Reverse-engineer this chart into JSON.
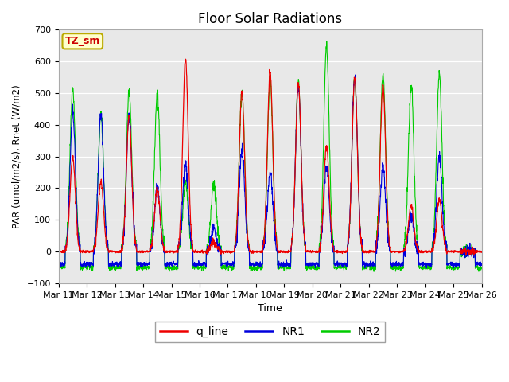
{
  "title": "Floor Solar Radiations",
  "xlabel": "Time",
  "ylabel": "PAR (umol/m2/s), Rnet (W/m2)",
  "ylim": [
    -100,
    700
  ],
  "yticks": [
    -100,
    0,
    100,
    200,
    300,
    400,
    500,
    600,
    700
  ],
  "bg_color": "#e8e8e8",
  "legend_label": "TZ_sm",
  "line_colors": {
    "q_line": "#ee0000",
    "NR1": "#0000dd",
    "NR2": "#00cc00"
  },
  "peaks_q": [
    300,
    220,
    430,
    200,
    610,
    30,
    505,
    565,
    535,
    335,
    550,
    525,
    145,
    165,
    0
  ],
  "peaks_NR1": [
    440,
    430,
    430,
    200,
    280,
    70,
    320,
    250,
    530,
    270,
    550,
    270,
    120,
    305,
    0
  ],
  "peaks_NR2": [
    510,
    430,
    505,
    500,
    220,
    215,
    500,
    540,
    540,
    650,
    550,
    560,
    530,
    555,
    0
  ],
  "night_NR1": -40,
  "night_NR2": -50,
  "n_days": 15,
  "pts_per_day": 144
}
